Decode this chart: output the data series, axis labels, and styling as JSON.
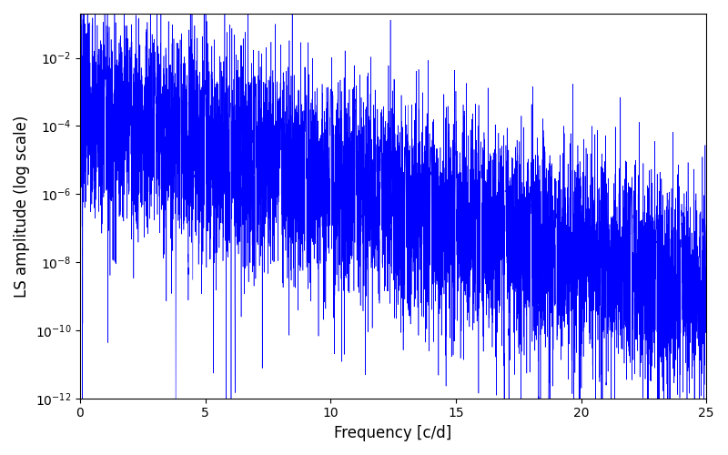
{
  "xlabel": "Frequency [c/d]",
  "ylabel": "LS amplitude (log scale)",
  "xlim": [
    0,
    25
  ],
  "ylim": [
    1e-12,
    0.2
  ],
  "line_color": "#0000FF",
  "background_color": "#ffffff",
  "figsize": [
    8.0,
    5.0
  ],
  "dpi": 100,
  "seed": 7,
  "n_points": 8000,
  "freq_max": 25.0,
  "base_log_amp": -3.5,
  "decay_per_unit": 0.22,
  "noise_sigma_log": 1.5,
  "null_depth": 8,
  "null_count": 30,
  "xlabel_fontsize": 12,
  "ylabel_fontsize": 12,
  "tick_fontsize": 10,
  "linewidth": 0.4
}
